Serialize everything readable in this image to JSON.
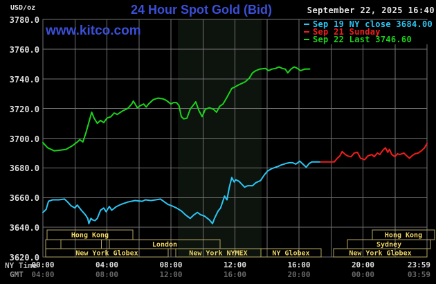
{
  "header": {
    "unit_label": "USD/oz",
    "title": "24 Hour Spot Gold (Bid)",
    "timestamp": "September 22, 2025 16:40",
    "watermark": "www.kitco.com"
  },
  "legend": {
    "items": [
      {
        "label": "Sep 19 NY close 3684.00",
        "color": "#2cc6f4"
      },
      {
        "label": "Sep 21 Sunday",
        "color": "#f21d1d"
      },
      {
        "label": "Sep 22 Last 3746.60",
        "color": "#1bd41b"
      }
    ]
  },
  "axes": {
    "ny_time_label": "NY Time",
    "gmt_label": "GMT",
    "x_ticks": [
      {
        "pos": 0,
        "ny": "00:00",
        "gmt": "04:00"
      },
      {
        "pos": 4,
        "ny": "04:00",
        "gmt": "08:00"
      },
      {
        "pos": 8,
        "ny": "08:00",
        "gmt": "12:00"
      },
      {
        "pos": 12,
        "ny": "12:00",
        "gmt": "16:00"
      },
      {
        "pos": 16,
        "ny": "16:00",
        "gmt": "20:00"
      },
      {
        "pos": 20,
        "ny": "20:00",
        "gmt": "00:00"
      },
      {
        "pos": 23.5,
        "ny": "23:59",
        "gmt": "03:59"
      }
    ],
    "y_ticks": [
      {
        "v": 3780,
        "label": "3780.0"
      },
      {
        "v": 3760,
        "label": "3760.0"
      },
      {
        "v": 3740,
        "label": "3740.0"
      },
      {
        "v": 3720,
        "label": "3720.0"
      },
      {
        "v": 3700,
        "label": "3700.0"
      },
      {
        "v": 3680,
        "label": "3680.0"
      },
      {
        "v": 3660,
        "label": "3660.0"
      },
      {
        "v": 3640,
        "label": "3640.0"
      },
      {
        "v": 3620,
        "label": "3620.0"
      }
    ]
  },
  "sessions": {
    "box_color": "#b5a763",
    "text_color": "#ecd264",
    "rows": [
      {
        "boxes": [
          {
            "label": "Hong Kong",
            "t0": 0.26,
            "t1": 5.62
          },
          {
            "label": "Hong Kong",
            "t0": 20.58,
            "t1": 24.48
          }
        ]
      },
      {
        "boxes": [
          {
            "label": "",
            "t0": 0.17,
            "t1": 1.12
          },
          {
            "label": "",
            "t0": 1.12,
            "t1": 3.66
          },
          {
            "label": "London",
            "t0": 4.15,
            "t1": 11.07
          },
          {
            "label": "Sydney",
            "t0": 19.03,
            "t1": 24.22
          }
        ]
      },
      {
        "boxes": [
          {
            "label": "New York Globex",
            "t0": 0.17,
            "t1": 7.83
          },
          {
            "label": "New York NYMEX",
            "t0": 8.3,
            "t1": 13.62
          },
          {
            "label": "NY Globex",
            "t0": 13.62,
            "t1": 17.38
          },
          {
            "label": "New York Globex",
            "t0": 18.16,
            "t1": 24.0
          }
        ]
      }
    ]
  },
  "chart_data": {
    "type": "line",
    "title": "24 Hour Spot Gold (Bid)",
    "xlabel": "NY Time",
    "ylabel": "USD/oz",
    "x_unit": "hours, NY time",
    "xlim": [
      0,
      24
    ],
    "ylim": [
      3620,
      3780
    ],
    "grid": true,
    "grid_color": "#757575",
    "x_grid_step_hours": 2,
    "y_grid_step": 20,
    "highlight_band_hours": [
      8.43,
      13.66
    ],
    "highlight_band_color": "#0d130d",
    "legend_position": "top-right",
    "series": [
      {
        "name": "Sep 19 NY close 3684.00",
        "color": "#2cc6f4",
        "points": [
          [
            0,
            3650
          ],
          [
            0.2,
            3652
          ],
          [
            0.35,
            3657.5
          ],
          [
            0.6,
            3658.5
          ],
          [
            1.0,
            3658.5
          ],
          [
            1.35,
            3659
          ],
          [
            1.55,
            3657
          ],
          [
            1.75,
            3654.5
          ],
          [
            2.0,
            3653
          ],
          [
            2.15,
            3655
          ],
          [
            2.4,
            3651.5
          ],
          [
            2.65,
            3648.5
          ],
          [
            2.8,
            3646
          ],
          [
            2.87,
            3642.5
          ],
          [
            3.0,
            3646
          ],
          [
            3.1,
            3645
          ],
          [
            3.25,
            3644.5
          ],
          [
            3.4,
            3646
          ],
          [
            3.6,
            3651.5
          ],
          [
            3.8,
            3653
          ],
          [
            3.95,
            3650.5
          ],
          [
            4.15,
            3654
          ],
          [
            4.3,
            3651.5
          ],
          [
            4.6,
            3654
          ],
          [
            4.9,
            3655.5
          ],
          [
            5.3,
            3657
          ],
          [
            5.75,
            3658
          ],
          [
            6.2,
            3657.5
          ],
          [
            6.4,
            3658.5
          ],
          [
            6.75,
            3658
          ],
          [
            7.05,
            3658.5
          ],
          [
            7.35,
            3659
          ],
          [
            7.8,
            3655.5
          ],
          [
            8.15,
            3654
          ],
          [
            8.35,
            3653
          ],
          [
            8.65,
            3651
          ],
          [
            8.9,
            3648.5
          ],
          [
            9.2,
            3646
          ],
          [
            9.45,
            3648.5
          ],
          [
            9.65,
            3650
          ],
          [
            9.85,
            3648.5
          ],
          [
            10.1,
            3647.5
          ],
          [
            10.4,
            3645
          ],
          [
            10.6,
            3642.5
          ],
          [
            10.72,
            3646
          ],
          [
            10.95,
            3651
          ],
          [
            11.1,
            3653
          ],
          [
            11.35,
            3661
          ],
          [
            11.5,
            3658.5
          ],
          [
            11.65,
            3667
          ],
          [
            11.8,
            3673.5
          ],
          [
            11.95,
            3670.5
          ],
          [
            12.05,
            3672
          ],
          [
            12.25,
            3671
          ],
          [
            12.6,
            3667
          ],
          [
            12.8,
            3668
          ],
          [
            13.1,
            3668
          ],
          [
            13.3,
            3670
          ],
          [
            13.6,
            3671.5
          ],
          [
            13.85,
            3675.5
          ],
          [
            14.05,
            3678
          ],
          [
            14.3,
            3679.5
          ],
          [
            14.55,
            3680.5
          ],
          [
            14.7,
            3681
          ],
          [
            14.9,
            3682
          ],
          [
            15.2,
            3683
          ],
          [
            15.4,
            3683.5
          ],
          [
            15.6,
            3683.5
          ],
          [
            15.8,
            3682.5
          ],
          [
            16.05,
            3684.5
          ],
          [
            16.25,
            3682.5
          ],
          [
            16.45,
            3680.5
          ],
          [
            16.65,
            3683
          ],
          [
            16.8,
            3684
          ],
          [
            17.0,
            3684
          ],
          [
            17.35,
            3684
          ]
        ]
      },
      {
        "name": "Sep 21 Sunday",
        "color": "#f21d1d",
        "points": [
          [
            17.35,
            3684
          ],
          [
            18.2,
            3684
          ],
          [
            18.4,
            3686.5
          ],
          [
            18.55,
            3688
          ],
          [
            18.7,
            3691
          ],
          [
            18.9,
            3689
          ],
          [
            19.05,
            3688
          ],
          [
            19.25,
            3687.5
          ],
          [
            19.45,
            3690
          ],
          [
            19.65,
            3690.5
          ],
          [
            19.85,
            3686.5
          ],
          [
            20.1,
            3685.5
          ],
          [
            20.3,
            3688
          ],
          [
            20.55,
            3689
          ],
          [
            20.7,
            3687.5
          ],
          [
            20.9,
            3690
          ],
          [
            21.05,
            3689
          ],
          [
            21.25,
            3692
          ],
          [
            21.4,
            3693.5
          ],
          [
            21.55,
            3690.5
          ],
          [
            21.65,
            3692.5
          ],
          [
            21.8,
            3689
          ],
          [
            22.0,
            3687.5
          ],
          [
            22.15,
            3689.5
          ],
          [
            22.3,
            3689
          ],
          [
            22.55,
            3690
          ],
          [
            22.7,
            3688.5
          ],
          [
            22.9,
            3686.5
          ],
          [
            23.1,
            3688.5
          ],
          [
            23.25,
            3689.5
          ],
          [
            23.45,
            3690
          ],
          [
            23.65,
            3691.5
          ],
          [
            23.85,
            3693.5
          ],
          [
            24.0,
            3696.5
          ]
        ]
      },
      {
        "name": "Sep 22 Last 3746.60",
        "color": "#1bd41b",
        "points": [
          [
            0,
            3697
          ],
          [
            0.3,
            3693.5
          ],
          [
            0.7,
            3691.5
          ],
          [
            1.1,
            3692
          ],
          [
            1.45,
            3692.5
          ],
          [
            1.85,
            3695
          ],
          [
            2.15,
            3697.5
          ],
          [
            2.3,
            3699
          ],
          [
            2.5,
            3697.5
          ],
          [
            2.7,
            3704
          ],
          [
            3.05,
            3717.5
          ],
          [
            3.2,
            3713.5
          ],
          [
            3.4,
            3710
          ],
          [
            3.6,
            3712
          ],
          [
            3.8,
            3710.5
          ],
          [
            4.0,
            3713.5
          ],
          [
            4.25,
            3714.5
          ],
          [
            4.45,
            3717
          ],
          [
            4.65,
            3716
          ],
          [
            5.0,
            3718.5
          ],
          [
            5.3,
            3720
          ],
          [
            5.55,
            3723
          ],
          [
            5.65,
            3725
          ],
          [
            5.9,
            3720.5
          ],
          [
            6.1,
            3722
          ],
          [
            6.3,
            3723
          ],
          [
            6.45,
            3721
          ],
          [
            6.6,
            3723
          ],
          [
            6.9,
            3726
          ],
          [
            7.2,
            3727
          ],
          [
            7.5,
            3726.5
          ],
          [
            7.7,
            3725.5
          ],
          [
            8.0,
            3723
          ],
          [
            8.15,
            3724
          ],
          [
            8.35,
            3724
          ],
          [
            8.5,
            3722
          ],
          [
            8.65,
            3714.5
          ],
          [
            8.8,
            3713
          ],
          [
            9.0,
            3713.5
          ],
          [
            9.2,
            3719.5
          ],
          [
            9.45,
            3723
          ],
          [
            9.55,
            3724.5
          ],
          [
            9.75,
            3718.5
          ],
          [
            9.95,
            3714.5
          ],
          [
            10.15,
            3719.5
          ],
          [
            10.4,
            3720.5
          ],
          [
            10.65,
            3719.5
          ],
          [
            10.85,
            3717.5
          ],
          [
            11.05,
            3721.5
          ],
          [
            11.25,
            3723
          ],
          [
            11.5,
            3727.5
          ],
          [
            11.8,
            3733.5
          ],
          [
            12.0,
            3734.5
          ],
          [
            12.25,
            3736
          ],
          [
            12.45,
            3737
          ],
          [
            12.65,
            3738
          ],
          [
            12.9,
            3740.5
          ],
          [
            13.1,
            3744
          ],
          [
            13.3,
            3745.5
          ],
          [
            13.55,
            3746.5
          ],
          [
            13.9,
            3747
          ],
          [
            14.1,
            3745.5
          ],
          [
            14.3,
            3746.5
          ],
          [
            14.55,
            3747
          ],
          [
            14.75,
            3748
          ],
          [
            14.95,
            3747
          ],
          [
            15.15,
            3746.5
          ],
          [
            15.3,
            3744
          ],
          [
            15.5,
            3746.5
          ],
          [
            15.7,
            3748
          ],
          [
            15.9,
            3747
          ],
          [
            16.1,
            3745.5
          ],
          [
            16.35,
            3746.5
          ],
          [
            16.67,
            3746.6
          ]
        ]
      }
    ]
  }
}
